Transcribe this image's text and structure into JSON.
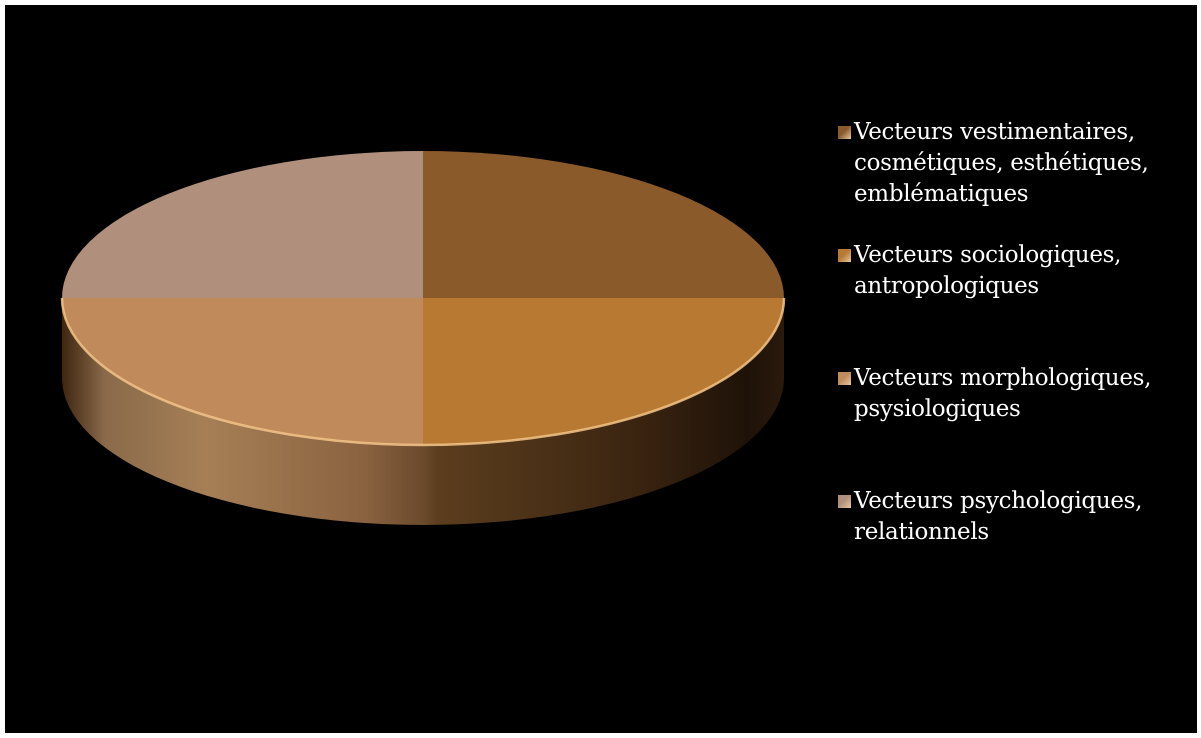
{
  "chart_data": {
    "type": "pie",
    "title": "",
    "style": "3d",
    "legend_position": "right",
    "categories": [
      "Vecteurs vestimentaires, cosmétiques, esthétiques, emblématiques",
      "Vecteurs sociologiques, antropologiques",
      "Vecteurs morphologiques, psysiologiques",
      "Vecteurs psychologiques, relationnels"
    ],
    "values": [
      25,
      25,
      25,
      25
    ],
    "colors": [
      "#8a5a2a",
      "#b87a32",
      "#c08a5a",
      "#b0907c"
    ]
  },
  "legend": {
    "items": [
      {
        "lines": [
          "Vecteurs vestimentaires,",
          "cosmétiques, esthétiques,",
          "emblématiques"
        ]
      },
      {
        "lines": [
          "Vecteurs sociologiques,",
          "antropologiques"
        ]
      },
      {
        "lines": [
          "Vecteurs morphologiques,",
          "psysiologiques"
        ]
      },
      {
        "lines": [
          "Vecteurs psychologiques,",
          "relationnels"
        ]
      }
    ]
  }
}
